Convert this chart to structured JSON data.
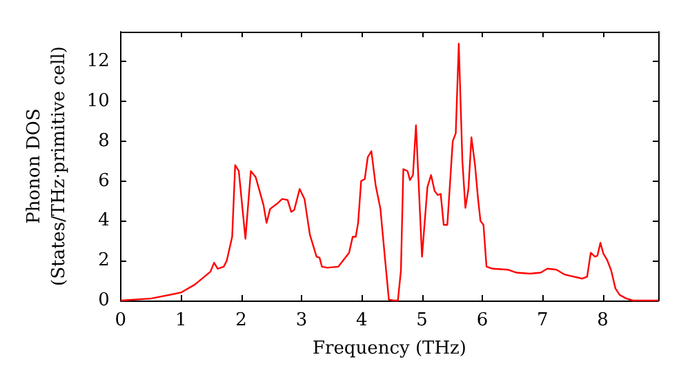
{
  "chart_data": {
    "type": "line",
    "xlabel": "Frequency (THz)",
    "ylabel": "Phonon DOS\n(States/THz·primitive cell)",
    "xlim": [
      0,
      8.92
    ],
    "ylim": [
      0,
      13.5
    ],
    "xticks": [
      0,
      1,
      2,
      3,
      4,
      5,
      6,
      7,
      8
    ],
    "yticks": [
      0,
      2,
      4,
      6,
      8,
      10,
      12
    ],
    "grid": false,
    "marker": "none",
    "line_style": "solid",
    "series": [
      {
        "color": "#ff0000",
        "x": [
          0,
          0.5,
          1.0,
          1.23,
          1.49,
          1.55,
          1.61,
          1.71,
          1.76,
          1.85,
          1.9,
          1.96,
          2.07,
          2.16,
          2.24,
          2.37,
          2.42,
          2.48,
          2.61,
          2.68,
          2.77,
          2.83,
          2.88,
          2.97,
          3.05,
          3.14,
          3.25,
          3.3,
          3.34,
          3.43,
          3.61,
          3.79,
          3.85,
          3.9,
          3.94,
          3.99,
          4.05,
          4.1,
          4.16,
          4.23,
          4.31,
          4.38,
          4.45,
          4.53,
          4.6,
          4.65,
          4.69,
          4.76,
          4.8,
          4.85,
          4.9,
          5.0,
          5.09,
          5.15,
          5.21,
          5.26,
          5.31,
          5.36,
          5.42,
          5.51,
          5.56,
          5.61,
          5.67,
          5.72,
          5.77,
          5.82,
          5.88,
          5.93,
          5.97,
          6.02,
          6.07,
          6.17,
          6.42,
          6.57,
          6.79,
          6.97,
          7.08,
          7.23,
          7.37,
          7.66,
          7.74,
          7.8,
          7.87,
          7.91,
          7.96,
          8.01,
          8.07,
          8.14,
          8.21,
          8.28,
          8.39,
          8.5,
          8.92
        ],
        "values": [
          0,
          0.1,
          0.4,
          0.8,
          1.45,
          1.9,
          1.6,
          1.7,
          2.0,
          3.2,
          6.8,
          6.5,
          3.1,
          6.5,
          6.2,
          4.8,
          3.9,
          4.6,
          4.9,
          5.1,
          5.05,
          4.45,
          4.55,
          5.6,
          5.1,
          3.3,
          2.2,
          2.15,
          1.7,
          1.65,
          1.7,
          2.4,
          3.2,
          3.2,
          3.9,
          6.0,
          6.1,
          7.2,
          7.5,
          5.8,
          4.6,
          2.3,
          0.05,
          0,
          0,
          1.5,
          6.6,
          6.5,
          6.05,
          6.3,
          8.8,
          2.2,
          5.7,
          6.3,
          5.5,
          5.3,
          5.35,
          3.8,
          3.8,
          8.0,
          8.4,
          12.9,
          7.0,
          4.65,
          5.6,
          8.2,
          6.8,
          5.1,
          4.0,
          3.8,
          1.7,
          1.6,
          1.55,
          1.4,
          1.35,
          1.4,
          1.6,
          1.55,
          1.3,
          1.1,
          1.2,
          2.4,
          2.2,
          2.25,
          2.9,
          2.35,
          2.05,
          1.5,
          0.6,
          0.28,
          0.1,
          0,
          0
        ]
      }
    ]
  }
}
